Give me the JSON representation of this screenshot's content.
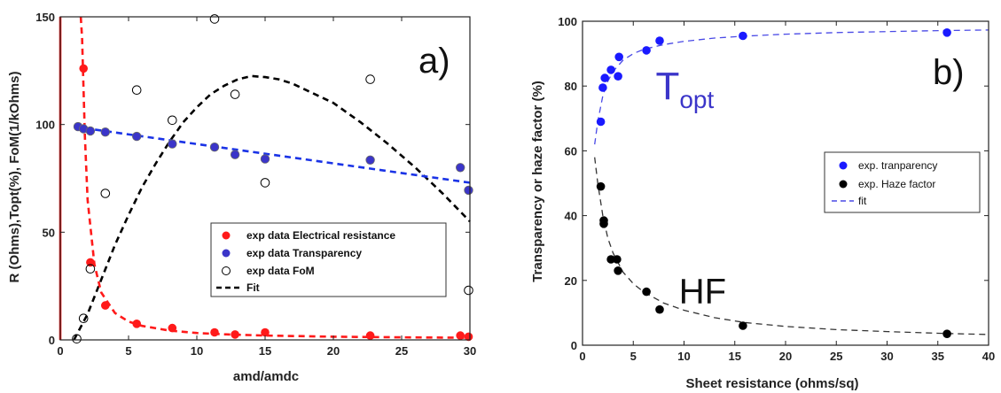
{
  "chart_data": [
    {
      "type": "scatter",
      "panel_label": "a)",
      "title": "",
      "xlabel": "amd/amdc",
      "ylabel": "R (Ohms),Topt(%), FoM(1/kOhms)",
      "xlim": [
        0,
        30
      ],
      "ylim": [
        0,
        150
      ],
      "xticks": [
        "0",
        "5",
        "10",
        "15",
        "20",
        "25",
        "30"
      ],
      "yticks": [
        "0",
        "50",
        "100",
        "150"
      ],
      "grid": false,
      "legend_position": "bottom-right",
      "series": [
        {
          "name": "exp data Electrical resistance",
          "marker": "filled-circle",
          "color": "#ff1a1a",
          "x": [
            1.7,
            2.2,
            3.3,
            5.6,
            8.2,
            11.3,
            12.8,
            15.0,
            22.7,
            29.3,
            29.9
          ],
          "y": [
            126,
            36,
            16,
            7.5,
            5.5,
            3.5,
            2.5,
            3.5,
            2,
            2,
            1.5
          ]
        },
        {
          "name": "exp data Transparency",
          "marker": "filled-circle",
          "color": "#3b35c9",
          "x": [
            1.3,
            1.7,
            2.2,
            3.3,
            5.6,
            8.2,
            11.3,
            12.8,
            15.0,
            22.7,
            29.3,
            29.9
          ],
          "y": [
            99,
            98,
            97,
            96.5,
            94.5,
            91,
            89.5,
            86,
            84,
            83.5,
            80,
            69.5
          ]
        },
        {
          "name": "exp data FoM",
          "marker": "open-circle",
          "color": "#000000",
          "x": [
            1.2,
            1.7,
            2.2,
            3.3,
            5.6,
            8.2,
            11.3,
            12.8,
            15.0,
            22.7,
            29.9
          ],
          "y": [
            0.5,
            10,
            33,
            68,
            116,
            102,
            149,
            114,
            73,
            121,
            23
          ]
        },
        {
          "name": "Fit",
          "style": "dashed",
          "color": "#000000",
          "legend": true,
          "x": [
            1,
            2,
            3,
            4,
            5,
            6,
            7,
            8,
            9,
            10,
            11,
            12,
            13,
            14,
            15,
            16,
            17,
            18,
            20,
            22,
            24,
            26,
            28,
            30
          ],
          "y": [
            0,
            12,
            28,
            44,
            58,
            71,
            82,
            92,
            101,
            108,
            114,
            118,
            121,
            122.5,
            122,
            121,
            119,
            116,
            110,
            101,
            91,
            80,
            68,
            55
          ]
        },
        {
          "style": "dashed",
          "color": "#ff1a1a",
          "legend": false,
          "x": [
            1.5,
            1.6,
            1.8,
            2.0,
            2.5,
            3,
            4,
            5,
            6,
            8,
            10,
            12,
            15,
            20,
            25,
            30
          ],
          "y": [
            150,
            140,
            95,
            65,
            35,
            22,
            12.5,
            8.5,
            6.5,
            4.3,
            3.2,
            2.6,
            2.0,
            1.5,
            1.2,
            1.0
          ]
        },
        {
          "style": "dashed",
          "color": "#1a33e6",
          "legend": false,
          "x": [
            1,
            30
          ],
          "y": [
            99,
            73
          ]
        },
        {
          "style": "solid",
          "color": "#ff1a1a",
          "legend": false,
          "x": [
            0,
            0
          ],
          "y": [
            0,
            150
          ]
        }
      ]
    },
    {
      "type": "scatter",
      "panel_label": "b)",
      "title": "",
      "xlabel": "Sheet resistance (ohms/sq)",
      "ylabel": "Transparency or haze factor (%)",
      "xlim": [
        0,
        40
      ],
      "ylim": [
        0,
        100
      ],
      "xticks": [
        "0",
        "5",
        "10",
        "15",
        "20",
        "25",
        "30",
        "35",
        "40"
      ],
      "yticks": [
        "0",
        "20",
        "40",
        "60",
        "80",
        "100"
      ],
      "grid": false,
      "legend_position": "middle-right",
      "annotations": [
        {
          "text": "T",
          "subscript": "opt",
          "color": "#3b35c9",
          "x": 7.2,
          "y": 76
        },
        {
          "text": "HF",
          "color": "#111111",
          "x": 9.5,
          "y": 13
        }
      ],
      "series": [
        {
          "name": "exp. tranparency",
          "marker": "filled-circle",
          "color": "#1a1aff",
          "x": [
            1.8,
            2.0,
            2.2,
            2.8,
            3.5,
            3.6,
            6.3,
            7.6,
            15.8,
            35.9
          ],
          "y": [
            69,
            79.5,
            82.5,
            85,
            83,
            89,
            91,
            94,
            95.5,
            96.5
          ]
        },
        {
          "name": "exp. Haze factor",
          "marker": "filled-circle",
          "color": "#000000",
          "x": [
            1.8,
            2.1,
            2.1,
            2.8,
            3.4,
            3.5,
            6.3,
            7.6,
            15.8,
            35.9
          ],
          "y": [
            49,
            38.5,
            37.5,
            26.5,
            26.5,
            23,
            16.5,
            11,
            6,
            3.5
          ]
        },
        {
          "name": "fit",
          "style": "dashed",
          "color": "#4a4ae6",
          "legend": true,
          "x": [
            1.2,
            1.5,
            2,
            2.5,
            3,
            4,
            5,
            6,
            8,
            10,
            13,
            16,
            20,
            25,
            30,
            35,
            40
          ],
          "y": [
            62,
            69,
            77,
            81.5,
            84.5,
            88,
            90,
            91.3,
            92.8,
            93.8,
            94.8,
            95.4,
            96,
            96.5,
            96.8,
            97.1,
            97.3
          ]
        },
        {
          "style": "dashed",
          "color": "#333333",
          "legend": false,
          "x": [
            1.2,
            1.5,
            2,
            2.5,
            3,
            4,
            5,
            6,
            8,
            10,
            13,
            16,
            20,
            25,
            30,
            35,
            40
          ],
          "y": [
            58,
            50,
            40,
            33,
            28.5,
            22.5,
            19,
            16.5,
            13,
            10.8,
            8.5,
            7,
            5.8,
            4.8,
            4.2,
            3.7,
            3.3
          ]
        }
      ]
    }
  ]
}
